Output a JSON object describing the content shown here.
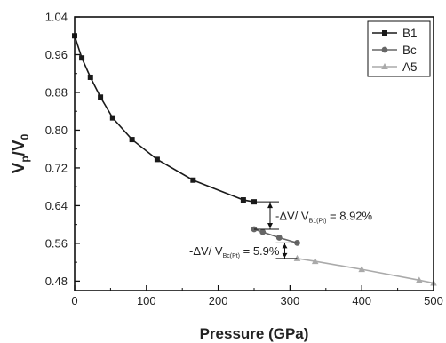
{
  "chart_data": {
    "type": "line",
    "xlabel": "Pressure (GPa)",
    "ylabel": {
      "base": "V",
      "sub1": "p",
      "mid": "/V",
      "sub2": "0"
    },
    "xlim": [
      0,
      500
    ],
    "ylim": [
      0.46,
      1.04
    ],
    "xticks": [
      0,
      100,
      200,
      300,
      400,
      500
    ],
    "yticks": [
      0.48,
      0.56,
      0.64,
      0.72,
      0.8,
      0.88,
      0.96,
      1.04
    ],
    "grid": false,
    "legend": "top-right",
    "series": [
      {
        "name": "B1",
        "marker": "square",
        "color": "#1a1a1a",
        "x": [
          0,
          10,
          22,
          36,
          53,
          80,
          115,
          165,
          235,
          250
        ],
        "y": [
          1.0,
          0.953,
          0.912,
          0.87,
          0.826,
          0.78,
          0.738,
          0.694,
          0.652,
          0.648
        ]
      },
      {
        "name": "Bc",
        "marker": "circle",
        "color": "#666666",
        "x": [
          250,
          262,
          285,
          310
        ],
        "y": [
          0.59,
          0.584,
          0.572,
          0.561
        ]
      },
      {
        "name": "A5",
        "marker": "triangle",
        "color": "#aaaaaa",
        "x": [
          310,
          335,
          400,
          480,
          500
        ],
        "y": [
          0.528,
          0.522,
          0.505,
          0.482,
          0.476
        ]
      }
    ],
    "annotations": [
      {
        "text": {
          "pre": "-ΔV/ V",
          "sub": "B1(Pt)",
          "post": " = 8.92%"
        },
        "x": 250,
        "y_from": 0.648,
        "y_to": 0.59
      },
      {
        "text": {
          "pre": "-ΔV/ V",
          "sub": "Bc(Pt)",
          "post": " = 5.9%"
        },
        "x": 310,
        "y_from": 0.561,
        "y_to": 0.528
      }
    ]
  }
}
